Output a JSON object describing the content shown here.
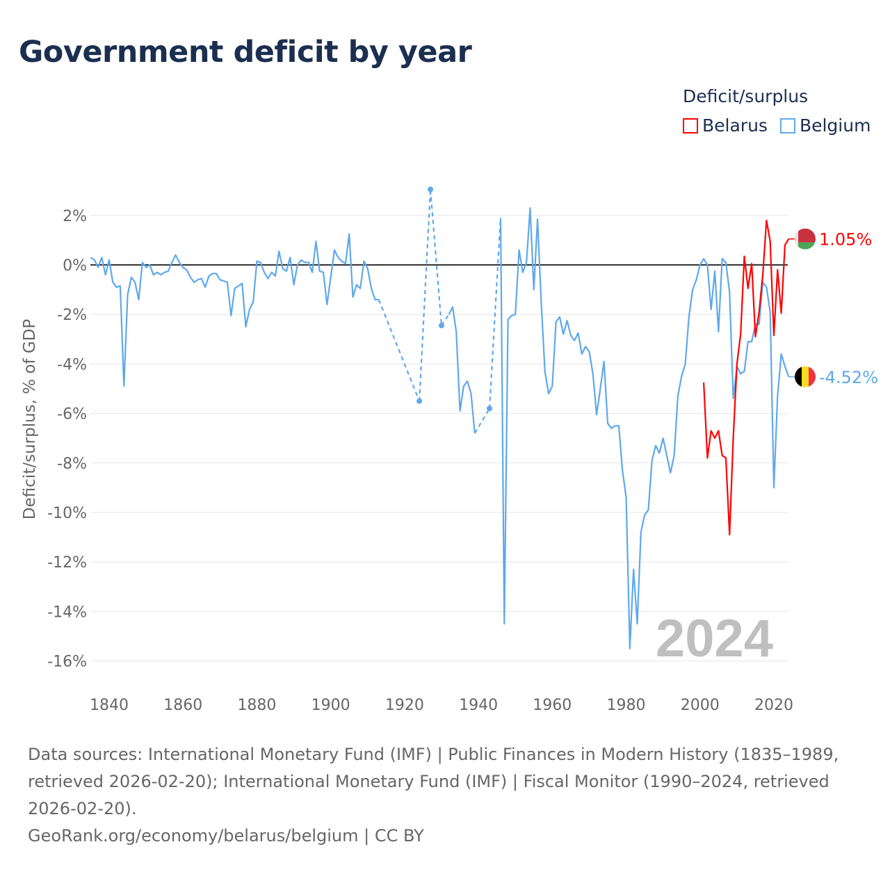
{
  "title": "Government deficit by year",
  "legend": {
    "title": "Deficit/surplus",
    "items": [
      {
        "name": "Belarus",
        "color": "#ff0000"
      },
      {
        "name": "Belgium",
        "color": "#5ea8ec"
      }
    ]
  },
  "footer": {
    "sources": "Data sources: International Monetary Fund (IMF) | Public Finances in Modern History (1835–1989, retrieved 2026-02-20); International Monetary Fund (IMF) | Fiscal Monitor (1990–2024, retrieved 2026-02-20).",
    "credit": "GeoRank.org/economy/belarus/belgium | CC BY"
  },
  "chart_data": {
    "type": "line",
    "title": "Government deficit by year",
    "xlabel": "",
    "ylabel": "Deficit/surplus, % of GDP",
    "xlim": [
      1835,
      2024
    ],
    "ylim": [
      -16.5,
      3.3
    ],
    "xticks": [
      1840,
      1860,
      1880,
      1900,
      1920,
      1940,
      1960,
      1980,
      2000,
      2020
    ],
    "yticks": [
      2,
      0,
      -2,
      -4,
      -6,
      -8,
      -10,
      -12,
      -14,
      -16
    ],
    "ytick_labels": [
      "2%",
      "0%",
      "-2%",
      "-4%",
      "-6%",
      "-8%",
      "-10%",
      "-12%",
      "-14%",
      "-16%"
    ],
    "grid": true,
    "legend_position": "top-right",
    "watermark_year": "2024",
    "series": [
      {
        "name": "Belgium",
        "color": "#5ea8ec",
        "end_label": "-4.52%",
        "start_year": 1835,
        "values": [
          0.3,
          0.2,
          -0.1,
          0.3,
          -0.4,
          0.2,
          -0.7,
          -0.9,
          -0.85,
          -4.9,
          -1.2,
          -0.5,
          -0.7,
          -1.4,
          0.1,
          -0.1,
          0,
          -0.4,
          -0.3,
          -0.4,
          -0.3,
          -0.25,
          0.1,
          0.4,
          0.1,
          -0.1,
          -0.2,
          -0.5,
          -0.7,
          -0.6,
          -0.55,
          -0.9,
          -0.45,
          -0.35,
          -0.35,
          -0.6,
          -0.65,
          -0.7,
          -2.05,
          -0.95,
          -0.85,
          -0.75,
          -2.5,
          -1.8,
          -1.5,
          0.15,
          0.1,
          -0.3,
          -0.55,
          -0.3,
          -0.45,
          0.55,
          -0.15,
          -0.25,
          0.3,
          -0.8,
          0.0,
          0.2,
          0.1,
          0.1,
          -0.3,
          0.95,
          -0.25,
          -0.3,
          -1.6,
          -0.5,
          0.6,
          0.3,
          0.15,
          0.05,
          1.25,
          -1.3,
          -0.8,
          -0.95,
          0.15,
          -0.15,
          -0.95,
          -1.4,
          -1.4,
          null,
          null,
          null,
          null,
          null,
          null,
          null,
          null,
          null,
          null,
          -5.5,
          null,
          null,
          3.05,
          null,
          null,
          -2.45,
          null,
          -2.0,
          -1.7,
          -2.7,
          -5.9,
          -4.9,
          -4.7,
          -5.2,
          -6.8,
          null,
          null,
          null,
          -5.8,
          null,
          null,
          1.9,
          -14.5,
          -2.2,
          -2.05,
          -2.0,
          0.6,
          -0.3,
          0.1,
          2.3,
          -1.0,
          1.85,
          -1.5,
          -4.3,
          -5.2,
          -4.9,
          -2.3,
          -2.1,
          -2.8,
          -2.25,
          -2.85,
          -3.05,
          -2.75,
          -3.6,
          -3.3,
          -3.5,
          -4.4,
          -6.05,
          -5.0,
          -3.9,
          -6.4,
          -6.6,
          -6.5,
          -6.5,
          -8.3,
          -9.4,
          -15.5,
          -12.3,
          -14.5,
          -10.8,
          -10.1,
          -9.9,
          -7.9,
          -7.3,
          -7.6,
          -7.0,
          -7.7,
          -8.4,
          -7.7,
          -5.3,
          -4.5,
          -4.0,
          -2.1,
          -1.0,
          -0.6,
          0.0,
          0.25,
          0.0,
          -1.8,
          -0.25,
          -2.7,
          0.25,
          0.1,
          -1.1,
          -5.4,
          -4.1,
          -4.4,
          -4.3,
          -3.1,
          -3.1,
          -2.4,
          -2.4,
          -0.7,
          -0.9,
          -1.9,
          -9.0,
          -5.3,
          -3.6,
          -4.1,
          -4.52
        ]
      },
      {
        "name": "Belarus",
        "color": "#ff0000",
        "end_label": "1.05%",
        "start_year": 2001,
        "values": [
          -4.75,
          -7.8,
          -6.7,
          -7.0,
          -6.7,
          -7.7,
          -7.8,
          -10.9,
          -7.0,
          -4.0,
          -2.8,
          0.35,
          -0.95,
          0.05,
          -2.9,
          -1.9,
          -0.4,
          1.8,
          0.95,
          -2.85,
          -0.2,
          -1.95,
          0.8,
          1.05
        ]
      }
    ]
  }
}
